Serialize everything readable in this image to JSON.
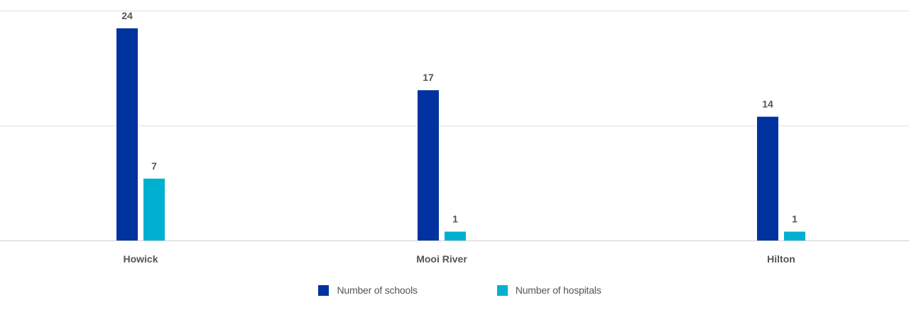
{
  "chart_data": {
    "type": "bar",
    "title": "",
    "xlabel": "",
    "ylabel": "",
    "categories": [
      "Howick",
      "Mooi River",
      "Hilton"
    ],
    "series": [
      {
        "name": "Number of schools",
        "color": "#0033a0",
        "values": [
          24,
          17,
          14
        ]
      },
      {
        "name": "Number of hospitals",
        "color": "#00b0d0",
        "values": [
          7,
          1,
          1
        ]
      }
    ],
    "ylim": [
      0,
      26
    ],
    "gridlines_at": [
      0,
      13,
      26
    ],
    "grid": true,
    "y_tick_labels_visible": false,
    "data_labels_visible": true,
    "legend_position": "bottom-center"
  }
}
